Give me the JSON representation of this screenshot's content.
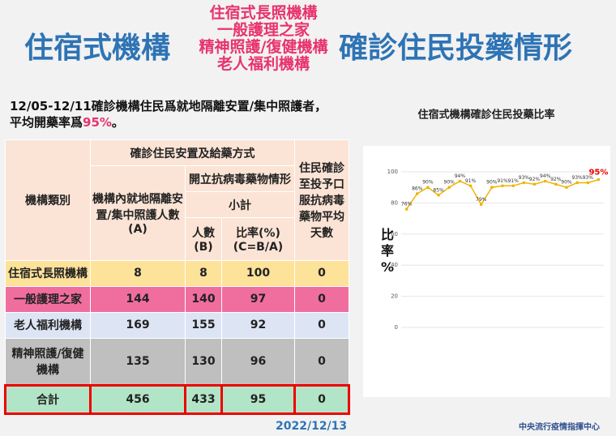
{
  "header": {
    "title_left": "住宿式機構",
    "title_center": [
      "住宿式長照機構",
      "一般護理之家",
      "精神照護/復健機構",
      "老人福利機構"
    ],
    "title_right": "確診住民投藥情形"
  },
  "summary": {
    "line1": "12/05-12/11確診機構住民爲就地隔離安置/集中照護者，",
    "line2": "平均開藥率爲",
    "highlight": "95%",
    "end": "。"
  },
  "table": {
    "headers": {
      "category": "機構類別",
      "group": "確診住民安置及給藥方式",
      "count_a": "機構內就地隔離安置/集中照護人數(A)",
      "prescribe": "開立抗病毒藥物情形",
      "subtotal": "小計",
      "count_b": "人數(B)",
      "rate": "比率(%)(C=B/A)",
      "days": "住民確診至投予口服抗病毒藥物平均天數"
    },
    "rows": [
      [
        "住宿式長照機構",
        8,
        8,
        100,
        0
      ],
      [
        "一般護理之家",
        144,
        140,
        97,
        0
      ],
      [
        "老人福利機構",
        169,
        155,
        92,
        0
      ],
      [
        "精神照護/復健機構",
        135,
        130,
        96,
        0
      ],
      [
        "合計",
        456,
        433,
        95,
        0
      ]
    ]
  },
  "chart_data": {
    "type": "line",
    "title": "住宿式機構確診住民投藥比率",
    "y_label": "比率%",
    "color": "#f0b400",
    "values": [
      76,
      86,
      90,
      85,
      90,
      94,
      91,
      79,
      90,
      91,
      91,
      93,
      92,
      94,
      92,
      90,
      93,
      93,
      95
    ],
    "value_labels": [
      "76%",
      "86%",
      "90%",
      "85%",
      "90%",
      "94%",
      "91%",
      "79%",
      "90%",
      "91%",
      "91%",
      "93%",
      "92%",
      "94%",
      "92%",
      "90%",
      "93%",
      "93%",
      "95%"
    ],
    "ylim": [
      0,
      100
    ],
    "yticks": [
      0,
      20,
      40,
      60,
      80,
      100
    ],
    "grid": true
  },
  "footer": {
    "date": "2022/12/13",
    "org": "中央流行疫情指揮中心"
  }
}
